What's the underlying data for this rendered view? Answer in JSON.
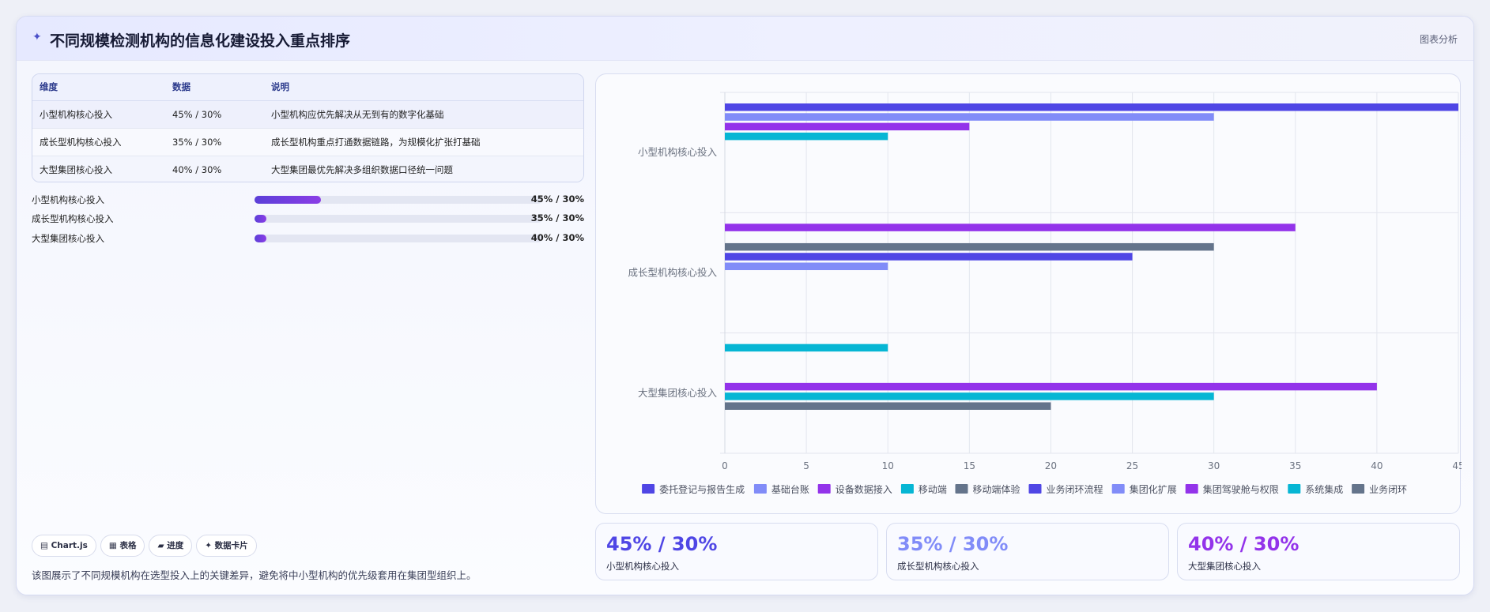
{
  "header": {
    "icon": "✦",
    "title": "不同规模检测机构的信息化建设投入重点排序",
    "action_label": "图表分析"
  },
  "table": {
    "headers": [
      "维度",
      "数据",
      "说明"
    ],
    "rows": [
      [
        "小型机构核心投入",
        "45% / 30%",
        "小型机构应优先解决从无到有的数字化基础"
      ],
      [
        "成长型机构核心投入",
        "35% / 30%",
        "成长型机构重点打通数据链路，为规模化扩张打基础"
      ],
      [
        "大型集团核心投入",
        "40% / 30%",
        "大型集团最优先解决多组织数据口径统一问题"
      ]
    ]
  },
  "progress": [
    {
      "label": "小型机构核心投入",
      "value": "45% / 30%",
      "fill": 0.23
    },
    {
      "label": "成长型机构核心投入",
      "value": "35% / 30%",
      "fill": 0.04
    },
    {
      "label": "大型集团核心投入",
      "value": "40% / 30%",
      "fill": 0.04
    }
  ],
  "chips": [
    {
      "icon": "▤",
      "label": "Chart.js"
    },
    {
      "icon": "▦",
      "label": "表格"
    },
    {
      "icon": "▰",
      "label": "进度"
    },
    {
      "icon": "✦",
      "label": "数据卡片"
    }
  ],
  "footnote": "该图展示了不同规模机构在选型投入上的关键差异，避免将中小型机构的优先级套用在集团型组织上。",
  "kpis": [
    {
      "value": "45% / 30%",
      "label": "小型机构核心投入",
      "color": "#4f46e5"
    },
    {
      "value": "35% / 30%",
      "label": "成长型机构核心投入",
      "color": "#818cf8"
    },
    {
      "value": "40% / 30%",
      "label": "大型集团核心投入",
      "color": "#9333ea"
    }
  ],
  "chart_data": {
    "type": "bar",
    "orientation": "horizontal",
    "categories": [
      "小型机构核心投入",
      "成长型机构核心投入",
      "大型集团核心投入"
    ],
    "xlim": [
      0,
      45
    ],
    "xticks": [
      0,
      5,
      10,
      15,
      20,
      25,
      30,
      35,
      40,
      45
    ],
    "grid": true,
    "legend_position": "bottom",
    "series": [
      {
        "name": "委托登记与报告生成",
        "color": "#4f46e5",
        "values": [
          45,
          null,
          null
        ]
      },
      {
        "name": "基础台账",
        "color": "#818cf8",
        "values": [
          30,
          null,
          null
        ]
      },
      {
        "name": "设备数据接入",
        "color": "#9333ea",
        "values": [
          15,
          null,
          null
        ]
      },
      {
        "name": "移动端",
        "color": "#06b6d4",
        "values": [
          10,
          null,
          null
        ]
      },
      {
        "name": "移动端体验",
        "color": "#64748b",
        "values": [
          null,
          null,
          null
        ]
      },
      {
        "name": "业务闭环流程",
        "color": "#4f46e5",
        "values": [
          null,
          null,
          null
        ]
      },
      {
        "name": "集团化扩展",
        "color": "#818cf8",
        "values": [
          null,
          null,
          null
        ]
      },
      {
        "name": "集团驾驶舱与权限",
        "color": "#9333ea",
        "values": [
          null,
          35,
          40
        ]
      },
      {
        "name": "系统集成",
        "color": "#06b6d4",
        "values": [
          null,
          null,
          30
        ]
      },
      {
        "name": "业务闭环",
        "color": "#64748b",
        "values": [
          null,
          null,
          20
        ]
      }
    ],
    "bars": [
      {
        "category": 0,
        "slot": 0,
        "value": 45,
        "color": "#4f46e5"
      },
      {
        "category": 0,
        "slot": 1,
        "value": 30,
        "color": "#818cf8"
      },
      {
        "category": 0,
        "slot": 2,
        "value": 15,
        "color": "#9333ea"
      },
      {
        "category": 0,
        "slot": 3,
        "value": 10,
        "color": "#06b6d4"
      },
      {
        "category": 1,
        "slot": 0,
        "value": 35,
        "color": "#9333ea"
      },
      {
        "category": 1,
        "slot": 2,
        "value": 30,
        "color": "#64748b"
      },
      {
        "category": 1,
        "slot": 3,
        "value": 25,
        "color": "#4f46e5"
      },
      {
        "category": 1,
        "slot": 4,
        "value": 10,
        "color": "#818cf8"
      },
      {
        "category": 2,
        "slot": 0,
        "value": 10,
        "color": "#06b6d4"
      },
      {
        "category": 2,
        "slot": 4,
        "value": 40,
        "color": "#9333ea"
      },
      {
        "category": 2,
        "slot": 5,
        "value": 30,
        "color": "#06b6d4"
      },
      {
        "category": 2,
        "slot": 6,
        "value": 20,
        "color": "#64748b"
      }
    ]
  }
}
